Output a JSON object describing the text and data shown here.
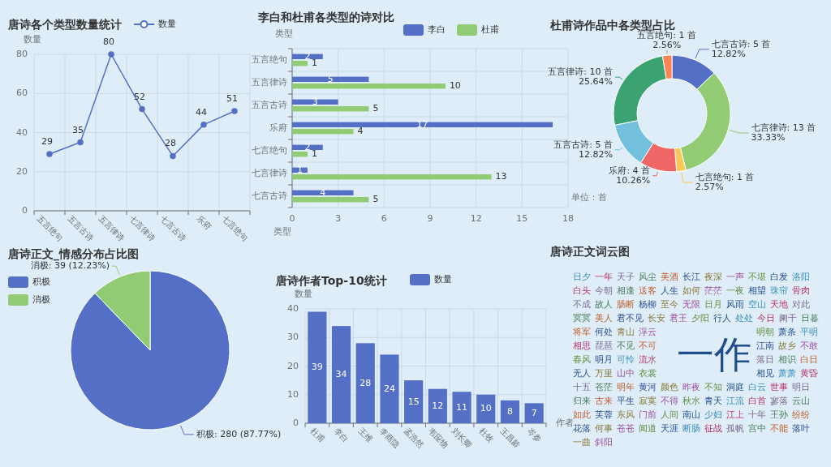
{
  "chart_data": [
    {
      "type": "line",
      "title": "唐诗各个类型数量统计",
      "ylabel": "数量",
      "categories": [
        "五言绝句",
        "五言古诗",
        "五言律诗",
        "七言律诗",
        "七言古诗",
        "乐府",
        "七言绝句"
      ],
      "series": [
        {
          "name": "数量",
          "color": "#5470c6",
          "values": [
            29,
            35,
            80,
            52,
            28,
            44,
            51
          ]
        }
      ],
      "ylim": [
        0,
        80
      ],
      "yticks": [
        0,
        20,
        40,
        60,
        80
      ],
      "grid": true,
      "legend": "top",
      "marker": "circle",
      "data_labels": true
    },
    {
      "type": "bar",
      "orientation": "horizontal",
      "title": "李白和杜甫各类型的诗对比",
      "xlabel": "类型",
      "ylabel": "类型",
      "categories": [
        "五言绝句",
        "五言律诗",
        "五言古诗",
        "乐府",
        "七言绝句",
        "七言律诗",
        "七言古诗"
      ],
      "series": [
        {
          "name": "李白",
          "color": "#5470c6",
          "values": [
            2,
            5,
            3,
            17,
            2,
            1,
            4
          ]
        },
        {
          "name": "杜甫",
          "color": "#91cc75",
          "values": [
            1,
            10,
            5,
            4,
            1,
            13,
            5
          ]
        }
      ],
      "xlim": [
        0,
        18
      ],
      "xticks": [
        0,
        3,
        6,
        9,
        12,
        15,
        18
      ],
      "grid": true,
      "legend": "top",
      "data_labels": true,
      "annotations": [
        "单位：首"
      ]
    },
    {
      "type": "donut",
      "title": "杜甫诗作品中各类型占比",
      "categories": [
        "七言古诗",
        "七言律诗",
        "七言绝句",
        "乐府",
        "五言古诗",
        "五言律诗",
        "五言绝句"
      ],
      "values": [
        5,
        13,
        1,
        4,
        5,
        10,
        1
      ],
      "colors": [
        "#5470c6",
        "#91cc75",
        "#fac858",
        "#ee6666",
        "#73c0de",
        "#3ba272",
        "#fc8452"
      ],
      "value_labels": [
        ": 5 首\n12.82%",
        ": 13 首\n33.33%",
        ": 1 首\n2.57%",
        ": 4 首\n10.26%",
        ": 5 首\n12.82%",
        ": 10 首\n25.64%",
        ": 1 首\n2.56%"
      ]
    },
    {
      "type": "pie",
      "title": "唐诗正文_情感分布占比图",
      "categories": [
        "积极",
        "消极"
      ],
      "values": [
        280,
        39
      ],
      "colors": [
        "#5470c6",
        "#91cc75"
      ],
      "value_labels": [
        "积极: 280 (87.77%)",
        "消极: 39 (12.23%)"
      ],
      "legend": "top left"
    },
    {
      "type": "bar",
      "title": "唐诗作者Top-10统计",
      "xlabel": "作者",
      "ylabel": "数量",
      "categories": [
        "杜甫",
        "李白",
        "王维",
        "李商隐",
        "孟浩然",
        "韦应物",
        "刘长卿",
        "杜牧",
        "王昌龄",
        "岑参"
      ],
      "series": [
        {
          "name": "数量",
          "color": "#5470c6",
          "values": [
            39,
            34,
            28,
            24,
            15,
            12,
            11,
            10,
            8,
            7
          ]
        }
      ],
      "ylim": [
        0,
        40
      ],
      "yticks": [
        0,
        10,
        20,
        30,
        40
      ],
      "grid": true,
      "legend": "top",
      "data_labels": true
    },
    {
      "type": "other",
      "title": "唐诗正文词云图",
      "categories": [
        "一作",
        "日夕",
        "一年",
        "天子",
        "风尘",
        "美酒",
        "长江",
        "夜深",
        "一声",
        "不堪",
        "白发",
        "洛阳",
        "白头",
        "今朝",
        "相逢",
        "送客",
        "人生",
        "如何",
        "茫茫",
        "一夜",
        "相望",
        "珠帘",
        "骨肉",
        "不成",
        "故人",
        "肠断",
        "杨柳",
        "至今",
        "无限",
        "日月",
        "风雨",
        "空山",
        "天地",
        "对此",
        "冥冥",
        "美人",
        "君不见",
        "长安",
        "君王",
        "夕阳",
        "行人",
        "处处",
        "今日",
        "阑干",
        "日暮",
        "将军",
        "何处",
        "青山",
        "浮云",
        "明朝",
        "萧条",
        "平明",
        "相思",
        "琵琶",
        "不见",
        "不可",
        "江南",
        "故乡",
        "不敢",
        "春风",
        "明月",
        "可怜",
        "流水",
        "落日",
        "相识",
        "白日",
        "无人",
        "万里",
        "山中",
        "衣裳",
        "相见",
        "萧萧",
        "黄昏",
        "十五",
        "苍茫",
        "明年",
        "黄河",
        "颜色",
        "昨夜",
        "不知",
        "洞庭",
        "白云",
        "世事",
        "明日",
        "归来",
        "古来",
        "平生",
        "寂寞",
        "不得",
        "秋水",
        "青天",
        "江流",
        "白首",
        "寥落",
        "云山",
        "如此",
        "芙蓉",
        "东风",
        "门前",
        "人间",
        "南山",
        "少妇",
        "江上",
        "十年",
        "王孙",
        "纷纷",
        "花落",
        "何事",
        "苍苍",
        "闻道",
        "天涯",
        "断肠",
        "征战",
        "孤帆",
        "宫中",
        "不能",
        "落叶",
        "一曲",
        "斜阳"
      ],
      "colors": [
        "#1f4e8c",
        "#3a8fb7",
        "#b8336a",
        "#7d6b91",
        "#4a7c59",
        "#c06030",
        "#2f4f8f",
        "#8a7a3a",
        "#9c4f9c",
        "#5f8f3f",
        "#1f4e8c",
        "#3a8fb7",
        "#b8336a",
        "#7d6b91",
        "#4a7c59",
        "#c06030",
        "#2f4f8f",
        "#8a7a3a",
        "#9c4f9c",
        "#5f8f3f",
        "#1f4e8c",
        "#3a8fb7",
        "#b8336a",
        "#7d6b91",
        "#4a7c59",
        "#c06030",
        "#2f4f8f",
        "#8a7a3a",
        "#9c4f9c",
        "#5f8f3f",
        "#1f4e8c",
        "#3a8fb7",
        "#b8336a",
        "#7d6b91",
        "#4a7c59",
        "#c06030",
        "#2f4f8f",
        "#8a7a3a",
        "#9c4f9c",
        "#5f8f3f",
        "#1f4e8c",
        "#3a8fb7",
        "#b8336a",
        "#7d6b91",
        "#4a7c59",
        "#c06030",
        "#2f4f8f",
        "#8a7a3a",
        "#9c4f9c",
        "#5f8f3f",
        "#1f4e8c",
        "#3a8fb7",
        "#b8336a",
        "#7d6b91",
        "#4a7c59",
        "#c06030",
        "#2f4f8f",
        "#8a7a3a",
        "#9c4f9c",
        "#5f8f3f",
        "#1f4e8c",
        "#3a8fb7",
        "#b8336a",
        "#7d6b91",
        "#4a7c59",
        "#c06030",
        "#2f4f8f",
        "#8a7a3a",
        "#9c4f9c",
        "#5f8f3f",
        "#1f4e8c",
        "#3a8fb7",
        "#b8336a",
        "#7d6b91",
        "#4a7c59",
        "#c06030",
        "#2f4f8f",
        "#8a7a3a",
        "#9c4f9c",
        "#5f8f3f",
        "#1f4e8c",
        "#3a8fb7",
        "#b8336a",
        "#7d6b91",
        "#4a7c59",
        "#c06030",
        "#2f4f8f",
        "#8a7a3a",
        "#9c4f9c",
        "#5f8f3f",
        "#1f4e8c",
        "#3a8fb7",
        "#b8336a",
        "#7d6b91",
        "#4a7c59",
        "#c06030",
        "#2f4f8f",
        "#8a7a3a",
        "#9c4f9c",
        "#5f8f3f",
        "#1f4e8c",
        "#3a8fb7",
        "#b8336a",
        "#7d6b91",
        "#4a7c59",
        "#c06030",
        "#2f4f8f",
        "#8a7a3a",
        "#9c4f9c",
        "#5f8f3f",
        "#1f4e8c",
        "#3a8fb7",
        "#b8336a",
        "#7d6b91",
        "#4a7c59",
        "#c06030",
        "#2f4f8f",
        "#8a7a3a",
        "#9c4f9c"
      ]
    }
  ]
}
